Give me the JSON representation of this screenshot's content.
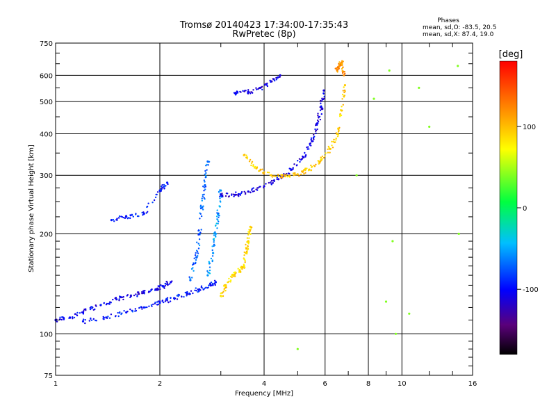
{
  "chart_data": {
    "type": "scatter",
    "title": "Tromsø 20140423 17:34:00-17:35:43",
    "subtitle": "RwPretec (8p)",
    "xlabel": "Frequency [MHz]",
    "ylabel": "Stationary phase Virtual Height [km]",
    "xscale": "log",
    "yscale": "log",
    "xlim": [
      1,
      16
    ],
    "ylim": [
      75,
      750
    ],
    "xticks": [
      1,
      2,
      4,
      6,
      8,
      10,
      16
    ],
    "xtick_labels": [
      "1",
      "2",
      "4",
      "6",
      "8",
      "10",
      "16"
    ],
    "yticks": [
      75,
      100,
      200,
      300,
      400,
      500,
      600,
      750
    ],
    "ytick_labels": [
      "75",
      "100",
      "200",
      "300",
      "400",
      "500",
      "600",
      "750"
    ],
    "grid": true,
    "colorbar": {
      "label": "[deg]",
      "ticks": [
        100,
        0,
        -100
      ],
      "tick_labels": [
        "100",
        "0",
        "-100"
      ],
      "range": [
        -180,
        180
      ],
      "colormap": "rainbow"
    },
    "stats_box": {
      "title": "Phases",
      "lines": [
        "mean, sd,O: -83.5, 20.5",
        "mean, sd,X: 87.4, 19.0"
      ]
    },
    "color_value": "phase (deg)",
    "series": [
      {
        "trace": "o-lower",
        "x": [
          1.0,
          1.1,
          1.2,
          1.35,
          1.5,
          1.65,
          1.8,
          1.95,
          2.05,
          2.15
        ],
        "y": [
          110,
          112,
          116,
          122,
          127,
          130,
          133,
          136,
          139,
          143
        ],
        "phase": -105
      },
      {
        "trace": "o-lower-2",
        "x": [
          1.2,
          1.4,
          1.6,
          1.8,
          2.0,
          2.2,
          2.4,
          2.6,
          2.8,
          2.9
        ],
        "y": [
          109,
          112,
          116,
          120,
          124,
          128,
          132,
          136,
          140,
          143
        ],
        "phase": -95
      },
      {
        "trace": "o-spread-a",
        "x": [
          2.45,
          2.55,
          2.6,
          2.65,
          2.7,
          2.75
        ],
        "y": [
          145,
          170,
          200,
          240,
          280,
          330
        ],
        "phase": -70
      },
      {
        "trace": "o-spread-b",
        "x": [
          2.75,
          2.85,
          2.9,
          2.95,
          3.0
        ],
        "y": [
          150,
          175,
          200,
          230,
          270
        ],
        "phase": -55
      },
      {
        "trace": "x-e",
        "x": [
          3.0,
          3.1,
          3.25,
          3.4,
          3.5,
          3.55,
          3.6,
          3.65
        ],
        "y": [
          130,
          140,
          150,
          155,
          160,
          175,
          190,
          210
        ],
        "phase": 90
      },
      {
        "trace": "f-o",
        "x": [
          3.0,
          3.3,
          3.6,
          4.0,
          4.4,
          4.8,
          5.2,
          5.5,
          5.7,
          5.85,
          5.95
        ],
        "y": [
          262,
          262,
          268,
          278,
          292,
          312,
          340,
          380,
          430,
          480,
          540
        ],
        "phase": -110
      },
      {
        "trace": "f-x",
        "x": [
          3.5,
          3.8,
          4.2,
          4.6,
          5.0,
          5.4,
          5.8,
          6.2,
          6.5,
          6.7,
          6.85
        ],
        "y": [
          345,
          315,
          300,
          298,
          302,
          312,
          330,
          360,
          400,
          470,
          560
        ],
        "phase": 95
      },
      {
        "trace": "f2-echo",
        "x": [
          3.3,
          3.6,
          3.9,
          4.2,
          4.45
        ],
        "y": [
          530,
          535,
          550,
          575,
          600
        ],
        "phase": -110
      },
      {
        "trace": "f-x-cusp",
        "x": [
          6.5,
          6.6,
          6.7,
          6.8
        ],
        "y": [
          620,
          640,
          655,
          600
        ],
        "phase": 120
      },
      {
        "trace": "scatter",
        "x": [
          1.45,
          1.6,
          1.8,
          2.0,
          2.1
        ],
        "y": [
          220,
          225,
          230,
          270,
          285
        ],
        "phase": -95
      },
      {
        "trace": "noise",
        "x": [
          9.2,
          10.5,
          12.0,
          14.5,
          14.6,
          9.4,
          9.0,
          11.2,
          8.3,
          7.4,
          5.0,
          9.6
        ],
        "y": [
          620,
          115,
          420,
          640,
          200,
          190,
          125,
          550,
          510,
          300,
          90,
          100
        ],
        "phase": 40
      }
    ]
  }
}
